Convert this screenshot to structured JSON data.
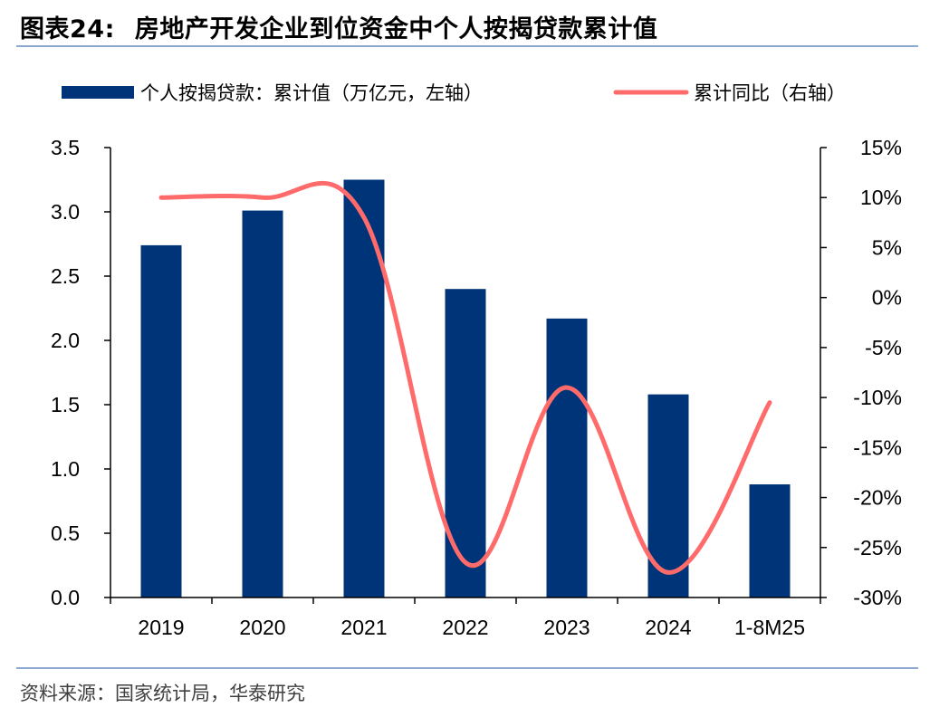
{
  "figure": {
    "label": "图表24:",
    "title": "房地产开发企业到位资金中个人按揭贷款累计值",
    "source": "资料来源：国家统计局，华泰研究"
  },
  "colors": {
    "bar": "#003478",
    "line": "#ff6b6b",
    "rule": "#8ea9cf"
  },
  "chart_data": {
    "type": "bar",
    "categories": [
      "2019",
      "2020",
      "2021",
      "2022",
      "2023",
      "2024",
      "1-8M25"
    ],
    "series": [
      {
        "name": "个人按揭贷款：累计值（万亿元，左轴）",
        "type": "bar",
        "axis": "left",
        "values": [
          2.74,
          3.01,
          3.25,
          2.4,
          2.17,
          1.58,
          0.88
        ]
      },
      {
        "name": "累计同比（右轴）",
        "type": "line",
        "axis": "right",
        "values": [
          10.0,
          10.0,
          8.0,
          -26.5,
          -9.0,
          -27.5,
          -10.5
        ]
      }
    ],
    "y_left": {
      "ticks": [
        "0.0",
        "0.5",
        "1.0",
        "1.5",
        "2.0",
        "2.5",
        "3.0",
        "3.5"
      ],
      "lim": [
        0,
        3.5
      ]
    },
    "y_right": {
      "ticks": [
        "-30%",
        "-25%",
        "-20%",
        "-15%",
        "-10%",
        "-5%",
        "0%",
        "5%",
        "10%",
        "15%"
      ],
      "lim": [
        -30,
        15
      ]
    },
    "grid": false,
    "legend": "top"
  }
}
